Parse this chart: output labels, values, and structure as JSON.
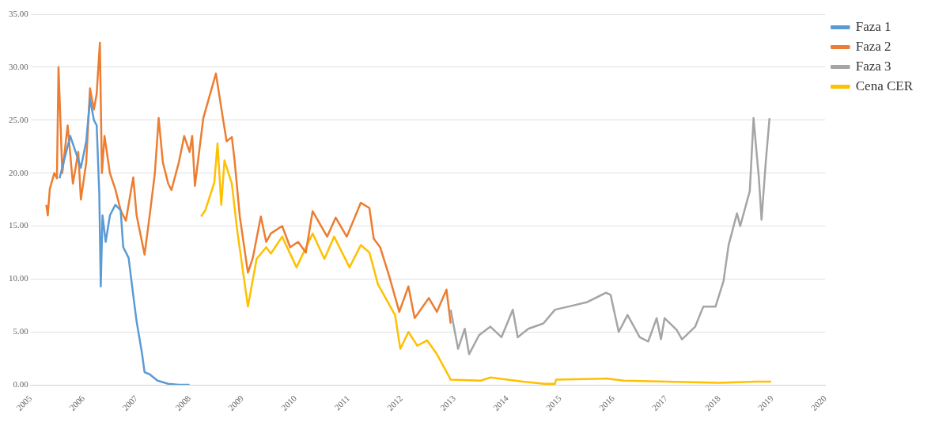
{
  "chart_data": {
    "type": "line",
    "xlim": [
      "2005",
      "2020"
    ],
    "xticks": [
      "2005",
      "2006",
      "2007",
      "2008",
      "2009",
      "2010",
      "2011",
      "2012",
      "2013",
      "2014",
      "2015",
      "2016",
      "2017",
      "2018",
      "2019",
      "2020"
    ],
    "ylim": [
      0,
      35
    ],
    "yticks": [
      {
        "value": 0,
        "label": "0.00"
      },
      {
        "value": 5,
        "label": "5.00"
      },
      {
        "value": 10,
        "label": "10.00"
      },
      {
        "value": 15,
        "label": "15.00"
      },
      {
        "value": 20,
        "label": "20.00"
      },
      {
        "value": 25,
        "label": "25.00"
      },
      {
        "value": 30,
        "label": "30.00"
      },
      {
        "value": 35,
        "label": "35.00"
      }
    ],
    "grid": "y",
    "legend": "top right",
    "marker": "none",
    "line_style": "solid",
    "series": [
      {
        "name": "Faza 1",
        "color": "#5b9bd5",
        "x": [
          "2005-07-19",
          "2005-08-25",
          "2005-10-01",
          "2005-11-07",
          "2005-12-13",
          "2006-01-19",
          "2006-02-14",
          "2006-03-13",
          "2006-04-01",
          "2006-04-19",
          "2006-04-29",
          "2006-05-11",
          "2006-06-02",
          "2006-07-01",
          "2006-08-07",
          "2006-09-13",
          "2006-10-01",
          "2006-11-07",
          "2006-12-13",
          "2007-01-01",
          "2007-02-07",
          "2007-02-25",
          "2007-04-01",
          "2007-05-25",
          "2007-08-07",
          "2007-10-19",
          "2008-01-01"
        ],
        "values": [
          19.5,
          21.5,
          23.5,
          22.0,
          20.5,
          23.0,
          27.0,
          25.0,
          24.5,
          18.0,
          9.3,
          16.0,
          13.5,
          16.0,
          17.0,
          16.5,
          13.0,
          12.0,
          8.0,
          6.0,
          3.0,
          1.2,
          1.0,
          0.4,
          0.1,
          0.0,
          0.0
        ]
      },
      {
        "name": "Faza 2",
        "color": "#ed7d31",
        "x": [
          "2005-04-19",
          "2005-04-29",
          "2005-05-13",
          "2005-06-13",
          "2005-07-01",
          "2005-07-12",
          "2005-08-07",
          "2005-09-13",
          "2005-10-19",
          "2005-11-25",
          "2005-12-13",
          "2006-01-19",
          "2006-02-14",
          "2006-03-13",
          "2006-04-01",
          "2006-04-23",
          "2006-05-07",
          "2006-05-25",
          "2006-07-01",
          "2006-08-07",
          "2006-09-13",
          "2006-10-19",
          "2006-12-09",
          "2007-01-01",
          "2007-02-25",
          "2007-04-01",
          "2007-05-07",
          "2007-06-02",
          "2007-07-01",
          "2007-08-07",
          "2007-08-29",
          "2007-10-19",
          "2007-11-25",
          "2008-01-01",
          "2008-01-19",
          "2008-02-07",
          "2008-04-05",
          "2008-07-01",
          "2008-08-18",
          "2008-09-13",
          "2008-10-19",
          "2008-11-07",
          "2008-12-13",
          "2009-02-07",
          "2009-03-13",
          "2009-05-07",
          "2009-06-13",
          "2009-07-15",
          "2009-10-01",
          "2009-11-25",
          "2010-01-19",
          "2010-03-13",
          "2010-04-29",
          "2010-08-07",
          "2010-10-05",
          "2010-12-20",
          "2011-03-27",
          "2011-05-25",
          "2011-06-24",
          "2011-08-07",
          "2011-10-08",
          "2011-12-17",
          "2012-02-18",
          "2012-04-01",
          "2012-07-08",
          "2012-09-02",
          "2012-11-07",
          "2012-12-06"
        ],
        "values": [
          17.0,
          16.0,
          18.5,
          20.0,
          19.5,
          30.0,
          20.0,
          24.5,
          19.0,
          22.0,
          17.5,
          21.0,
          28.0,
          26.0,
          27.5,
          32.3,
          20.0,
          23.5,
          20.0,
          18.5,
          16.5,
          15.5,
          19.6,
          16.0,
          12.3,
          16.0,
          20.0,
          25.2,
          21.0,
          19.0,
          18.4,
          21.0,
          23.5,
          22.0,
          23.5,
          18.8,
          25.2,
          29.4,
          25.2,
          23.0,
          23.4,
          21.2,
          15.9,
          10.6,
          12.0,
          15.9,
          13.5,
          14.3,
          15.0,
          13.0,
          13.5,
          12.5,
          16.4,
          14.0,
          15.8,
          14.0,
          17.2,
          16.7,
          13.8,
          13.0,
          10.3,
          6.9,
          9.3,
          6.3,
          8.2,
          6.9,
          9.0,
          5.8
        ]
      },
      {
        "name": "Faza 3",
        "color": "#a5a5a5",
        "x": [
          "2012-12-06",
          "2013-01-26",
          "2013-03-13",
          "2013-04-12",
          "2013-06-20",
          "2013-09-06",
          "2013-11-21",
          "2014-02-07",
          "2014-03-13",
          "2014-05-25",
          "2014-09-06",
          "2014-11-25",
          "2015-02-28",
          "2015-07-01",
          "2015-11-11",
          "2015-12-13",
          "2016-02-07",
          "2016-04-08",
          "2016-07-01",
          "2016-08-29",
          "2016-10-26",
          "2016-11-25",
          "2016-12-20",
          "2017-03-13",
          "2017-04-19",
          "2017-07-19",
          "2017-09-13",
          "2017-12-06",
          "2018-01-30",
          "2018-03-06",
          "2018-05-03",
          "2018-05-25",
          "2018-07-30",
          "2018-08-25",
          "2018-09-13",
          "2018-10-01",
          "2018-10-19",
          "2018-11-18",
          "2018-12-13"
        ],
        "values": [
          7.1,
          3.4,
          5.3,
          2.9,
          4.7,
          5.5,
          4.5,
          7.1,
          4.5,
          5.3,
          5.8,
          7.1,
          7.4,
          7.8,
          8.7,
          8.5,
          5.0,
          6.6,
          4.5,
          4.1,
          6.3,
          4.3,
          6.3,
          5.2,
          4.3,
          5.5,
          7.4,
          7.4,
          9.8,
          13.2,
          16.2,
          15.0,
          18.3,
          25.2,
          22.2,
          19.5,
          15.6,
          21.2,
          25.2
        ]
      },
      {
        "name": "Cena CER",
        "color": "#ffc000",
        "x": [
          "2008-03-20",
          "2008-04-19",
          "2008-06-20",
          "2008-07-12",
          "2008-08-07",
          "2008-08-29",
          "2008-10-19",
          "2008-11-25",
          "2009-02-07",
          "2009-04-08",
          "2009-06-13",
          "2009-07-15",
          "2009-10-01",
          "2010-01-08",
          "2010-04-29",
          "2010-07-19",
          "2010-09-24",
          "2011-01-08",
          "2011-03-27",
          "2011-05-25",
          "2011-07-23",
          "2011-11-18",
          "2011-12-24",
          "2012-02-18",
          "2012-04-19",
          "2012-06-27",
          "2012-09-02",
          "2012-12-06",
          "2013-07-01",
          "2013-09-06",
          "2014-04-19",
          "2014-09-13",
          "2014-11-25",
          "2014-12-02",
          "2015-11-11",
          "2016-03-13",
          "2017-01-01",
          "2018-01-01",
          "2018-09-13",
          "2018-12-24"
        ],
        "values": [
          15.9,
          16.5,
          19.1,
          22.8,
          17.0,
          21.2,
          19.0,
          14.6,
          7.4,
          11.9,
          13.0,
          12.4,
          14.0,
          11.1,
          14.3,
          11.9,
          14.0,
          11.1,
          13.2,
          12.5,
          9.5,
          6.6,
          3.4,
          5.0,
          3.7,
          4.2,
          2.9,
          0.5,
          0.4,
          0.7,
          0.3,
          0.1,
          0.1,
          0.5,
          0.6,
          0.4,
          0.3,
          0.2,
          0.3,
          0.3
        ]
      }
    ]
  }
}
